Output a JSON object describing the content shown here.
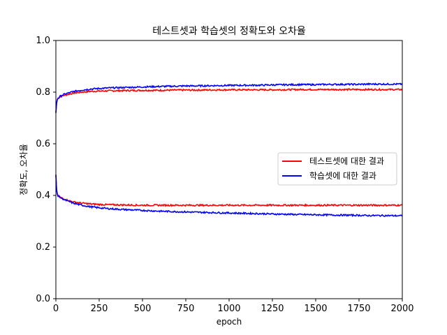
{
  "chart_data": {
    "type": "line",
    "title": "테스트셋과 학습셋의 정확도와 오차율",
    "xlabel": "epoch",
    "ylabel": "정확도, 오차율",
    "xlim": [
      0,
      2000
    ],
    "ylim": [
      0.0,
      1.0
    ],
    "xticks": [
      "0",
      "250",
      "500",
      "750",
      "1000",
      "1250",
      "1500",
      "1750",
      "2000"
    ],
    "yticks": [
      "0.0",
      "0.2",
      "0.4",
      "0.6",
      "0.8",
      "1.0"
    ],
    "grid": false,
    "legend_position": "center-right",
    "legend": [
      {
        "name": "테스트셋에 대한 결과",
        "color": "#ff0000"
      },
      {
        "name": "학습셋에 대한 결과",
        "color": "#0000ff"
      }
    ],
    "x": [
      0,
      5,
      10,
      25,
      50,
      100,
      150,
      200,
      250,
      300,
      400,
      500,
      600,
      700,
      750,
      800,
      1000,
      1200,
      1250,
      1400,
      1500,
      1600,
      1750,
      1800,
      1900,
      2000
    ],
    "series": [
      {
        "name": "테스트셋에 대한 결과",
        "role": "accuracy",
        "color": "#ff0000",
        "values": [
          0.72,
          0.765,
          0.775,
          0.782,
          0.788,
          0.796,
          0.8,
          0.803,
          0.804,
          0.805,
          0.806,
          0.807,
          0.807,
          0.808,
          0.808,
          0.808,
          0.809,
          0.809,
          0.809,
          0.81,
          0.81,
          0.81,
          0.81,
          0.81,
          0.81,
          0.81
        ]
      },
      {
        "name": "학습셋에 대한 결과",
        "role": "accuracy",
        "color": "#0000ff",
        "values": [
          0.72,
          0.765,
          0.775,
          0.784,
          0.792,
          0.802,
          0.808,
          0.812,
          0.814,
          0.816,
          0.818,
          0.82,
          0.822,
          0.823,
          0.824,
          0.824,
          0.826,
          0.827,
          0.828,
          0.829,
          0.829,
          0.83,
          0.83,
          0.831,
          0.831,
          0.831
        ]
      },
      {
        "name": "테스트셋에 대한 결과",
        "role": "loss",
        "color": "#ff0000",
        "values": [
          0.48,
          0.41,
          0.4,
          0.393,
          0.385,
          0.375,
          0.37,
          0.367,
          0.365,
          0.364,
          0.363,
          0.362,
          0.362,
          0.362,
          0.362,
          0.362,
          0.362,
          0.362,
          0.362,
          0.362,
          0.362,
          0.362,
          0.362,
          0.362,
          0.362,
          0.362
        ]
      },
      {
        "name": "학습셋에 대한 결과",
        "role": "loss",
        "color": "#0000ff",
        "values": [
          0.48,
          0.41,
          0.4,
          0.392,
          0.383,
          0.37,
          0.362,
          0.356,
          0.352,
          0.349,
          0.345,
          0.342,
          0.339,
          0.337,
          0.336,
          0.335,
          0.332,
          0.329,
          0.328,
          0.326,
          0.325,
          0.324,
          0.323,
          0.322,
          0.322,
          0.321
        ]
      }
    ]
  }
}
